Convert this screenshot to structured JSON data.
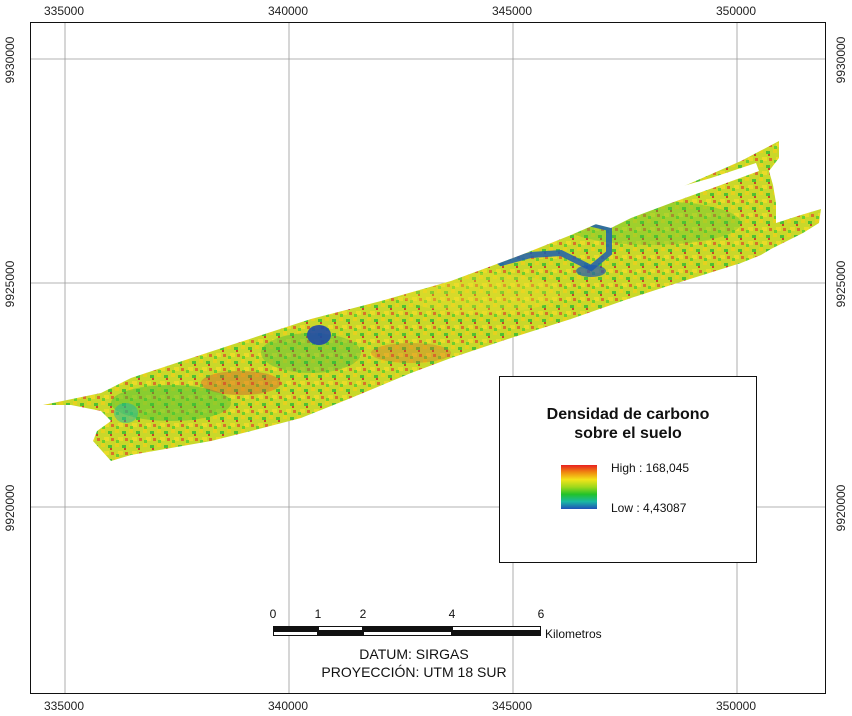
{
  "map": {
    "x_ticks": [
      "335000",
      "340000",
      "345000",
      "350000"
    ],
    "y_ticks": [
      "9930000",
      "9925000",
      "9920000"
    ]
  },
  "legend": {
    "title_line1": "Densidad de carbono",
    "title_line2": "sobre el suelo",
    "high_label": "High : 168,045",
    "low_label": "Low : 4,43087",
    "ramp_colors": [
      "#e82020",
      "#f08a10",
      "#f2e41a",
      "#9ed81c",
      "#22c22a",
      "#1ab8a4",
      "#1e50b8"
    ]
  },
  "scale": {
    "labels": [
      "0",
      "1",
      "2",
      "4",
      "6"
    ],
    "unit": "Kilometros"
  },
  "footer": {
    "datum": "DATUM: SIRGAS",
    "projection": "PROYECCIÓN: UTM 18 SUR"
  }
}
